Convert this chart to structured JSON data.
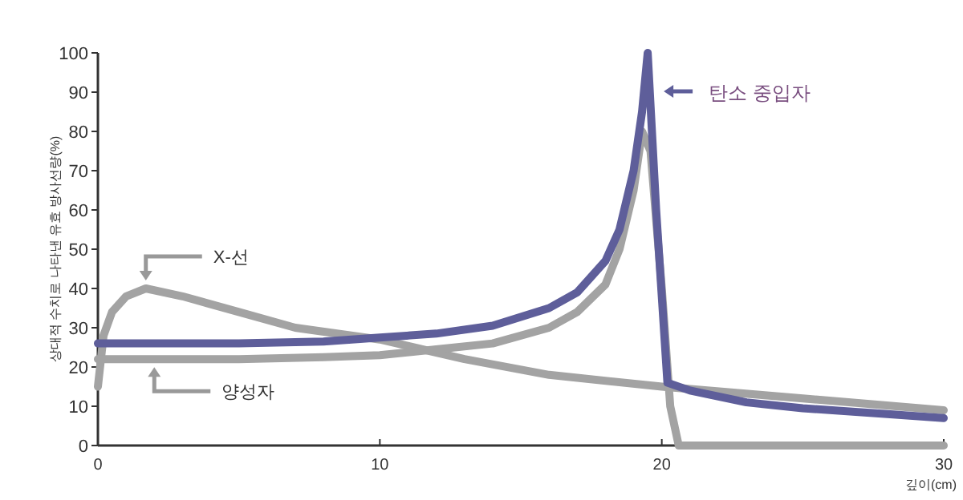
{
  "chart_data": {
    "type": "line",
    "xlabel": "깊이(cm)",
    "ylabel": "상대적 수치로 나타낸 유효 방사선량(%)",
    "xlim": [
      0,
      30
    ],
    "xticks": [
      0,
      10,
      20,
      30
    ],
    "ylim": [
      0,
      100
    ],
    "yticks": [
      0,
      10,
      20,
      30,
      40,
      50,
      60,
      70,
      80,
      90,
      100
    ],
    "grid": false,
    "legend": "top",
    "marker": "none",
    "line_style": "solid",
    "series": [
      {
        "name": "X-선",
        "color": "#a3a3a3",
        "x": [
          0,
          0.2,
          0.5,
          1,
          1.7,
          3,
          5,
          7,
          10,
          13,
          16,
          20,
          25,
          30
        ],
        "values": [
          15,
          28,
          34,
          38,
          40,
          38,
          34,
          30,
          27,
          22,
          18,
          15,
          12,
          9
        ]
      },
      {
        "name": "양성자",
        "color": "#a3a3a3",
        "x": [
          0,
          5,
          8,
          10,
          12,
          14,
          16,
          17,
          18,
          18.5,
          19,
          19.3,
          19.6,
          20,
          20.3,
          20.6,
          30
        ],
        "values": [
          22,
          22,
          22.5,
          23,
          24.5,
          26,
          30,
          34,
          41,
          50,
          65,
          80,
          75,
          40,
          10,
          0,
          0
        ]
      },
      {
        "name": "탄소 중입자",
        "color": "#5e5e9a",
        "x": [
          0,
          5,
          8,
          10,
          12,
          14,
          16,
          17,
          18,
          18.5,
          19,
          19.3,
          19.5,
          19.8,
          20.2,
          21,
          23,
          25,
          28,
          30
        ],
        "values": [
          26,
          26,
          26.5,
          27.5,
          28.5,
          30.5,
          35,
          39,
          47,
          55,
          70,
          85,
          100,
          60,
          16,
          14,
          11,
          9.5,
          8,
          7
        ]
      }
    ]
  }
}
